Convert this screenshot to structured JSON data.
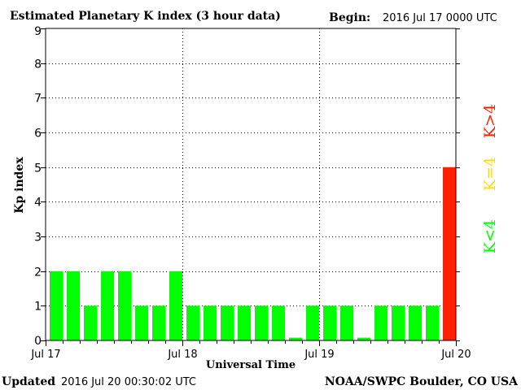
{
  "header": {
    "title": "Estimated Planetary K index (3 hour data)",
    "begin_label": "Begin:",
    "begin_value": "2016 Jul 17 0000 UTC"
  },
  "footer": {
    "updated_label": "Updated",
    "updated_value": "2016 Jul 20 00:30:02 UTC",
    "source": "NOAA/SWPC Boulder, CO USA"
  },
  "legend": {
    "high": "K>4",
    "mid": "K=4",
    "low": "K<4"
  },
  "colors": {
    "below_4": "#00ff00",
    "equal_4": "#ffdd00",
    "above_4": "#ff2200",
    "grid": "#000000",
    "frame": "#000000"
  },
  "chart_data": {
    "type": "bar",
    "title": "Estimated Planetary K index (3 hour data)",
    "xlabel": "Universal Time",
    "ylabel": "Kp index",
    "ylim": [
      0,
      9
    ],
    "yticks": [
      0,
      1,
      2,
      3,
      4,
      5,
      6,
      7,
      8,
      9
    ],
    "xticks": [
      "Jul 17",
      "Jul 18",
      "Jul 19",
      "Jul 20"
    ],
    "grid": "dotted",
    "slots_per_day": 8,
    "days": 3,
    "values": [
      2,
      2,
      1,
      2,
      2,
      1,
      1,
      2,
      1,
      1,
      1,
      1,
      1,
      1,
      0.08,
      1,
      1,
      1,
      0.08,
      1,
      1,
      1,
      1,
      5
    ]
  }
}
